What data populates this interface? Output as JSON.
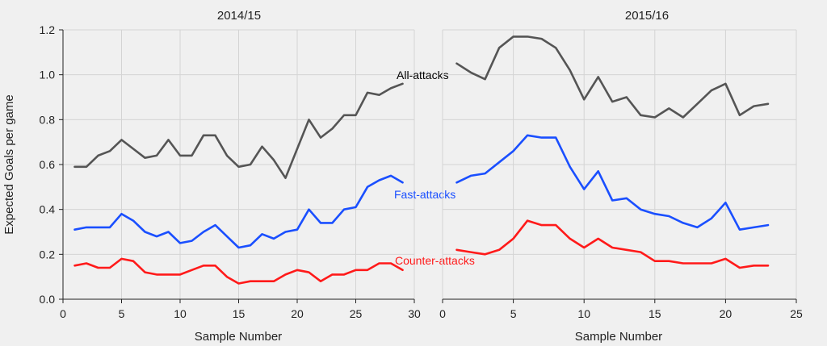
{
  "chart_data": [
    {
      "type": "line",
      "title": "2014/15",
      "xlabel": "Sample Number",
      "ylabel": "Expected Goals per game",
      "xlim": [
        0,
        30
      ],
      "ylim": [
        0,
        1.2
      ],
      "xticks": [
        0,
        5,
        10,
        15,
        20,
        25,
        30
      ],
      "yticks": [
        0.0,
        0.2,
        0.4,
        0.6,
        0.8,
        1.0,
        1.2
      ],
      "ytick_labels": [
        "0.0",
        "0.2",
        "0.4",
        "0.6",
        "0.8",
        "1.0",
        "1.2"
      ],
      "grid": true,
      "x": [
        1,
        2,
        3,
        4,
        5,
        6,
        7,
        8,
        9,
        10,
        11,
        12,
        13,
        14,
        15,
        16,
        17,
        18,
        19,
        20,
        21,
        22,
        23,
        24,
        25,
        26,
        27,
        28,
        29
      ],
      "series": [
        {
          "name": "All-attacks",
          "color": "#555555",
          "values": [
            0.59,
            0.59,
            0.64,
            0.66,
            0.71,
            0.67,
            0.63,
            0.64,
            0.71,
            0.64,
            0.64,
            0.73,
            0.73,
            0.64,
            0.59,
            0.6,
            0.68,
            0.62,
            0.54,
            0.67,
            0.8,
            0.72,
            0.76,
            0.82,
            0.82,
            0.92,
            0.91,
            0.94,
            0.96
          ]
        },
        {
          "name": "Fast-attacks",
          "color": "#1a4fff",
          "values": [
            0.31,
            0.32,
            0.32,
            0.32,
            0.38,
            0.35,
            0.3,
            0.28,
            0.3,
            0.25,
            0.26,
            0.3,
            0.33,
            0.28,
            0.23,
            0.24,
            0.29,
            0.27,
            0.3,
            0.31,
            0.4,
            0.34,
            0.34,
            0.4,
            0.41,
            0.5,
            0.53,
            0.55,
            0.52
          ]
        },
        {
          "name": "Counter-attacks",
          "color": "#ff1a1a",
          "values": [
            0.15,
            0.16,
            0.14,
            0.14,
            0.18,
            0.17,
            0.12,
            0.11,
            0.11,
            0.11,
            0.13,
            0.15,
            0.15,
            0.1,
            0.07,
            0.08,
            0.08,
            0.08,
            0.11,
            0.13,
            0.12,
            0.08,
            0.11,
            0.11,
            0.13,
            0.13,
            0.16,
            0.16,
            0.13
          ]
        }
      ]
    },
    {
      "type": "line",
      "title": "2015/16",
      "xlabel": "Sample Number",
      "ylabel": "",
      "xlim": [
        0,
        25
      ],
      "ylim": [
        0,
        1.2
      ],
      "xticks": [
        0,
        5,
        10,
        15,
        20,
        25
      ],
      "yticks": [
        0.0,
        0.2,
        0.4,
        0.6,
        0.8,
        1.0,
        1.2
      ],
      "grid": true,
      "x": [
        1,
        2,
        3,
        4,
        5,
        6,
        7,
        8,
        9,
        10,
        11,
        12,
        13,
        14,
        15,
        16,
        17,
        18,
        19,
        20,
        21,
        22,
        23
      ],
      "series": [
        {
          "color": "#555555",
          "values": [
            1.05,
            1.01,
            0.98,
            1.12,
            1.17,
            1.17,
            1.16,
            1.12,
            1.02,
            0.89,
            0.99,
            0.88,
            0.9,
            0.82,
            0.81,
            0.85,
            0.81,
            0.87,
            0.93,
            0.96,
            0.82,
            0.86,
            0.87
          ]
        },
        {
          "color": "#1a4fff",
          "values": [
            0.52,
            0.55,
            0.56,
            0.61,
            0.66,
            0.73,
            0.72,
            0.72,
            0.59,
            0.49,
            0.57,
            0.44,
            0.45,
            0.4,
            0.38,
            0.37,
            0.34,
            0.32,
            0.36,
            0.43,
            0.31,
            0.32,
            0.33
          ]
        },
        {
          "color": "#ff1a1a",
          "values": [
            0.22,
            0.21,
            0.2,
            0.22,
            0.27,
            0.35,
            0.33,
            0.33,
            0.27,
            0.23,
            0.27,
            0.23,
            0.22,
            0.21,
            0.17,
            0.17,
            0.16,
            0.16,
            0.16,
            0.18,
            0.14,
            0.15,
            0.15
          ]
        }
      ]
    }
  ]
}
